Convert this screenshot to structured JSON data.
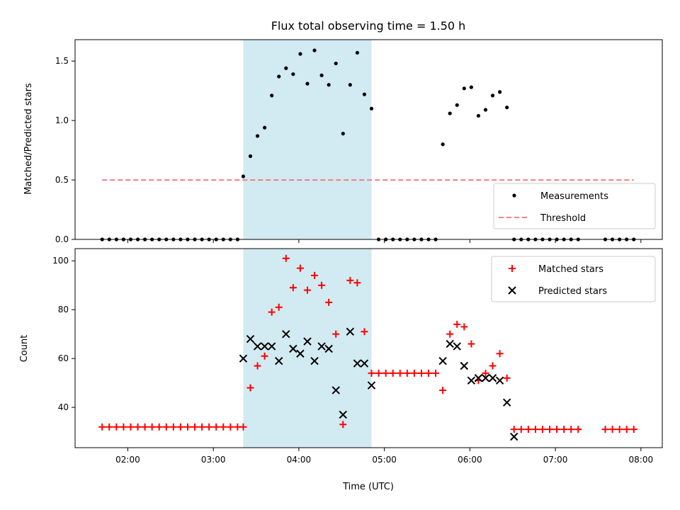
{
  "chart_data": [
    {
      "type": "scatter",
      "title": "Flux total observing time = 1.50 h",
      "ylabel": "Matched/Predicted stars",
      "xlabel": "",
      "ylim": [
        0,
        1.68
      ],
      "yticks": [
        "0.0",
        "0.5",
        "1.0",
        "1.5"
      ],
      "grid": false,
      "legend_position": "bottom-right",
      "highlight_span": {
        "start": "03:21",
        "end": "04:51",
        "color": "#add8e6"
      },
      "series": [
        {
          "name": "Measurements",
          "marker": "dot",
          "color": "#000000",
          "points": [
            [
              "01:42",
              0
            ],
            [
              "01:47",
              0
            ],
            [
              "01:52",
              0
            ],
            [
              "01:57",
              0
            ],
            [
              "02:02",
              0
            ],
            [
              "02:07",
              0
            ],
            [
              "02:12",
              0
            ],
            [
              "02:17",
              0
            ],
            [
              "02:22",
              0
            ],
            [
              "02:27",
              0
            ],
            [
              "02:32",
              0
            ],
            [
              "02:37",
              0
            ],
            [
              "02:42",
              0
            ],
            [
              "02:47",
              0
            ],
            [
              "02:52",
              0
            ],
            [
              "02:57",
              0
            ],
            [
              "03:02",
              0
            ],
            [
              "03:07",
              0
            ],
            [
              "03:12",
              0
            ],
            [
              "03:17",
              0
            ],
            [
              "03:21",
              0.53
            ],
            [
              "03:26",
              0.7
            ],
            [
              "03:31",
              0.87
            ],
            [
              "03:36",
              0.94
            ],
            [
              "03:41",
              1.21
            ],
            [
              "03:46",
              1.37
            ],
            [
              "03:51",
              1.44
            ],
            [
              "03:56",
              1.39
            ],
            [
              "04:01",
              1.56
            ],
            [
              "04:06",
              1.31
            ],
            [
              "04:11",
              1.59
            ],
            [
              "04:16",
              1.38
            ],
            [
              "04:21",
              1.3
            ],
            [
              "04:26",
              1.48
            ],
            [
              "04:31",
              0.89
            ],
            [
              "04:36",
              1.3
            ],
            [
              "04:41",
              1.57
            ],
            [
              "04:46",
              1.22
            ],
            [
              "04:51",
              1.1
            ],
            [
              "04:56",
              0
            ],
            [
              "05:01",
              0
            ],
            [
              "05:06",
              0
            ],
            [
              "05:11",
              0
            ],
            [
              "05:16",
              0
            ],
            [
              "05:21",
              0
            ],
            [
              "05:26",
              0
            ],
            [
              "05:31",
              0
            ],
            [
              "05:36",
              0
            ],
            [
              "05:41",
              0.8
            ],
            [
              "05:46",
              1.06
            ],
            [
              "05:51",
              1.13
            ],
            [
              "05:56",
              1.27
            ],
            [
              "06:01",
              1.28
            ],
            [
              "06:06",
              1.04
            ],
            [
              "06:11",
              1.09
            ],
            [
              "06:16",
              1.21
            ],
            [
              "06:21",
              1.24
            ],
            [
              "06:26",
              1.11
            ],
            [
              "06:31",
              0
            ],
            [
              "06:36",
              0
            ],
            [
              "06:41",
              0
            ],
            [
              "06:46",
              0
            ],
            [
              "06:51",
              0
            ],
            [
              "06:56",
              0
            ],
            [
              "07:01",
              0
            ],
            [
              "07:06",
              0
            ],
            [
              "07:11",
              0
            ],
            [
              "07:16",
              0
            ],
            [
              "07:35",
              0
            ],
            [
              "07:40",
              0
            ],
            [
              "07:45",
              0
            ],
            [
              "07:50",
              0
            ],
            [
              "07:55",
              0
            ]
          ]
        },
        {
          "name": "Threshold",
          "marker": "dashed-line",
          "color": "#f08080",
          "points": [
            [
              "01:42",
              0.5
            ],
            [
              "07:55",
              0.5
            ]
          ]
        }
      ]
    },
    {
      "type": "scatter",
      "title": "",
      "xlabel": "Time (UTC)",
      "ylabel": "Count",
      "ylim": [
        23.5,
        105
      ],
      "yticks": [
        "40",
        "60",
        "80",
        "100"
      ],
      "xlim": [
        "01:23",
        "08:15"
      ],
      "xticks": [
        "02:00",
        "03:00",
        "04:00",
        "05:00",
        "06:00",
        "07:00",
        "08:00"
      ],
      "grid": false,
      "legend_position": "top-right",
      "highlight_span": {
        "start": "03:21",
        "end": "04:51",
        "color": "#add8e6"
      },
      "series": [
        {
          "name": "Matched stars",
          "marker": "plus",
          "color": "#ff0000",
          "points": [
            [
              "01:42",
              32
            ],
            [
              "01:47",
              32
            ],
            [
              "01:52",
              32
            ],
            [
              "01:57",
              32
            ],
            [
              "02:02",
              32
            ],
            [
              "02:07",
              32
            ],
            [
              "02:12",
              32
            ],
            [
              "02:17",
              32
            ],
            [
              "02:22",
              32
            ],
            [
              "02:27",
              32
            ],
            [
              "02:32",
              32
            ],
            [
              "02:37",
              32
            ],
            [
              "02:42",
              32
            ],
            [
              "02:47",
              32
            ],
            [
              "02:52",
              32
            ],
            [
              "02:57",
              32
            ],
            [
              "03:02",
              32
            ],
            [
              "03:07",
              32
            ],
            [
              "03:12",
              32
            ],
            [
              "03:17",
              32
            ],
            [
              "03:21",
              32
            ],
            [
              "03:26",
              48
            ],
            [
              "03:31",
              57
            ],
            [
              "03:36",
              61
            ],
            [
              "03:41",
              79
            ],
            [
              "03:46",
              81
            ],
            [
              "03:51",
              101
            ],
            [
              "03:56",
              89
            ],
            [
              "04:01",
              97
            ],
            [
              "04:06",
              88
            ],
            [
              "04:11",
              94
            ],
            [
              "04:16",
              90
            ],
            [
              "04:21",
              83
            ],
            [
              "04:26",
              70
            ],
            [
              "04:31",
              33
            ],
            [
              "04:36",
              92
            ],
            [
              "04:41",
              91
            ],
            [
              "04:46",
              71
            ],
            [
              "04:51",
              54
            ],
            [
              "04:56",
              54
            ],
            [
              "05:01",
              54
            ],
            [
              "05:06",
              54
            ],
            [
              "05:11",
              54
            ],
            [
              "05:16",
              54
            ],
            [
              "05:21",
              54
            ],
            [
              "05:26",
              54
            ],
            [
              "05:31",
              54
            ],
            [
              "05:36",
              54
            ],
            [
              "05:41",
              47
            ],
            [
              "05:46",
              70
            ],
            [
              "05:51",
              74
            ],
            [
              "05:56",
              73
            ],
            [
              "06:01",
              66
            ],
            [
              "06:06",
              51
            ],
            [
              "06:11",
              54
            ],
            [
              "06:16",
              57
            ],
            [
              "06:21",
              62
            ],
            [
              "06:26",
              52
            ],
            [
              "06:31",
              31
            ],
            [
              "06:36",
              31
            ],
            [
              "06:41",
              31
            ],
            [
              "06:46",
              31
            ],
            [
              "06:51",
              31
            ],
            [
              "06:56",
              31
            ],
            [
              "07:01",
              31
            ],
            [
              "07:06",
              31
            ],
            [
              "07:11",
              31
            ],
            [
              "07:16",
              31
            ],
            [
              "07:35",
              31
            ],
            [
              "07:40",
              31
            ],
            [
              "07:45",
              31
            ],
            [
              "07:50",
              31
            ],
            [
              "07:55",
              31
            ]
          ]
        },
        {
          "name": "Predicted stars",
          "marker": "x",
          "color": "#000000",
          "points": [
            [
              "03:21",
              60
            ],
            [
              "03:26",
              68
            ],
            [
              "03:31",
              65
            ],
            [
              "03:36",
              65
            ],
            [
              "03:41",
              65
            ],
            [
              "03:46",
              59
            ],
            [
              "03:51",
              70
            ],
            [
              "03:56",
              64
            ],
            [
              "04:01",
              62
            ],
            [
              "04:06",
              67
            ],
            [
              "04:11",
              59
            ],
            [
              "04:16",
              65
            ],
            [
              "04:21",
              64
            ],
            [
              "04:26",
              47
            ],
            [
              "04:31",
              37
            ],
            [
              "04:36",
              71
            ],
            [
              "04:41",
              58
            ],
            [
              "04:46",
              58
            ],
            [
              "04:51",
              49
            ],
            [
              "05:41",
              59
            ],
            [
              "05:46",
              66
            ],
            [
              "05:51",
              65
            ],
            [
              "05:56",
              57
            ],
            [
              "06:01",
              51
            ],
            [
              "06:06",
              52
            ],
            [
              "06:11",
              52
            ],
            [
              "06:16",
              52
            ],
            [
              "06:21",
              51
            ],
            [
              "06:26",
              42
            ],
            [
              "06:31",
              28
            ]
          ]
        }
      ]
    }
  ]
}
